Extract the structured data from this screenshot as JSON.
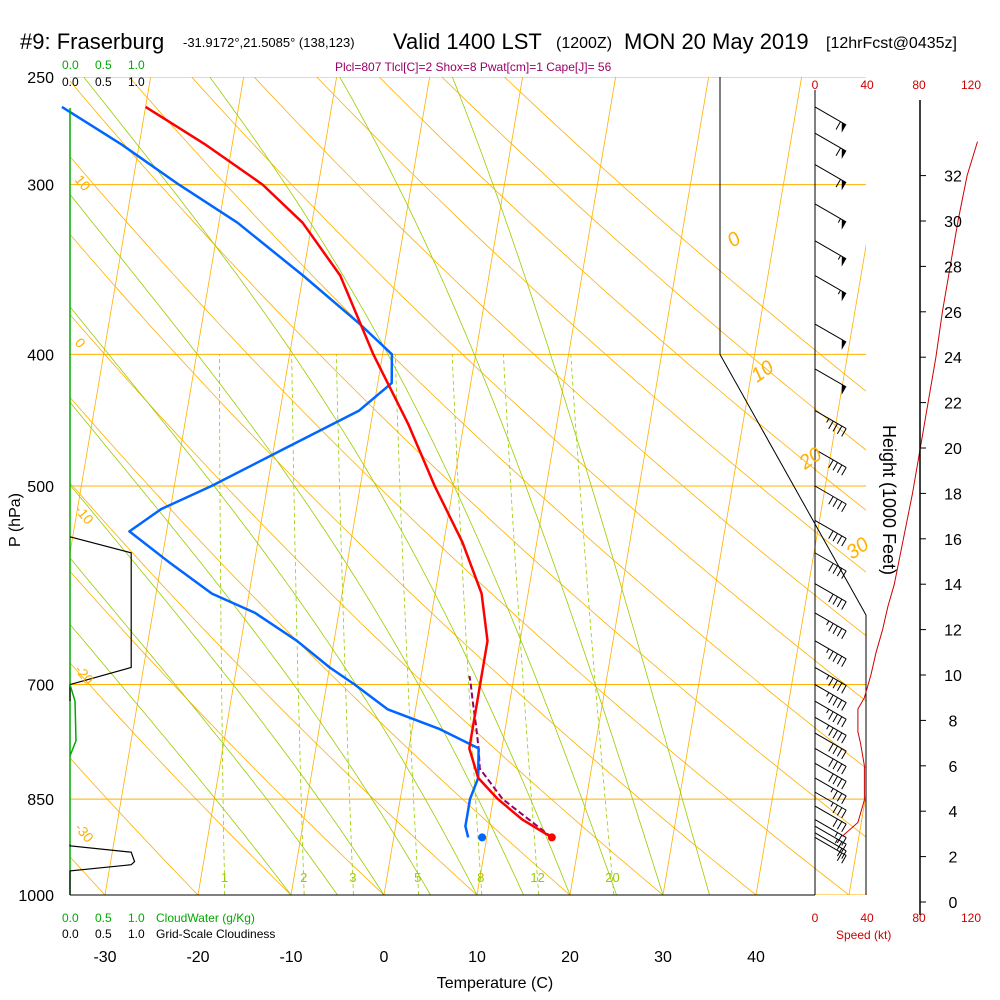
{
  "header": {
    "station": "#9: Fraserburg",
    "coords": "-31.9172°,21.5085° (138,123)",
    "valid": "Valid 1400 LST",
    "zulu": "(1200Z)",
    "date": "MON 20 May 2019",
    "forecast": "[12hrFcst@0435z]",
    "indices": "Plcl=807 Tlcl[C]=2 Shox=8 Pwat[cm]=1 Cape[J]= 56"
  },
  "colors": {
    "background": "#ffffff",
    "isotherm": "#ffb000",
    "dry_adiabat": "#ffb000",
    "moist_adiabat": "#99cc00",
    "mixing_ratio": "#99cc00",
    "temperature": "#ff0000",
    "dewpoint": "#0066ff",
    "parcel": "#990066",
    "cloudwater": "#00aa00",
    "indices_text": "#990066",
    "wind_speed": "#cc0000",
    "barb": "#000000"
  },
  "chart_data": {
    "type": "line",
    "title": "",
    "xlabel": "Temperature (C)",
    "ylabel": "P (hPa)",
    "y2label": "Height (1000 Feet)",
    "xlim": [
      -35,
      45
    ],
    "ylim_hpa": [
      1000,
      250
    ],
    "x_ticks": [
      "-30",
      "-20",
      "-10",
      "0",
      "10",
      "20",
      "30",
      "40"
    ],
    "p_ticks": [
      "250",
      "300",
      "400",
      "500",
      "700",
      "850",
      "1000"
    ],
    "height_ticks": [
      "0",
      "2",
      "4",
      "6",
      "8",
      "10",
      "12",
      "14",
      "16",
      "18",
      "20",
      "22",
      "24",
      "26",
      "28",
      "30",
      "32"
    ],
    "mixing_ratio_labels": [
      "1",
      "2",
      "3",
      "5",
      "8",
      "12",
      "20"
    ],
    "theta_labels": [
      "0",
      "10",
      "20",
      "30"
    ],
    "left_axis_labels": [
      "10",
      "0",
      "-10",
      "-20",
      "-30"
    ],
    "cloud_scale_top": [
      "0.0",
      "0.5",
      "1.0"
    ],
    "cloud_scale_top2": [
      "0.0",
      "0.5",
      "1.0"
    ],
    "cloud_scale_bottom": [
      "0.0",
      "0.5",
      "1.0"
    ],
    "cloud_scale_bottom2": [
      "0.0",
      "0.5",
      "1.0"
    ],
    "cloudwater_label": "CloudWater (g/Kg)",
    "cloudiness_label": "Grid-Scale Cloudiness",
    "wind_speed_ticks": [
      "0",
      "40",
      "80",
      "120"
    ],
    "wind_speed_label": "Speed (kt)",
    "temperature": {
      "p": [
        907,
        880,
        850,
        820,
        780,
        750,
        720,
        700,
        680,
        650,
        600,
        550,
        500,
        450,
        400,
        350,
        320,
        300,
        280,
        263
      ],
      "t": [
        17,
        13.5,
        10.5,
        8,
        6.5,
        6.5,
        6.5,
        6.5,
        6.5,
        6.5,
        5,
        2,
        -2,
        -6,
        -11,
        -16,
        -21,
        -26,
        -33,
        -40
      ]
    },
    "dewpoint": {
      "p": [
        907,
        890,
        870,
        850,
        820,
        780,
        755,
        730,
        700,
        680,
        650,
        620,
        600,
        570,
        540,
        520,
        500,
        470,
        440,
        420,
        400,
        380,
        350,
        320,
        300,
        280,
        263
      ],
      "t": [
        8,
        7.5,
        7.5,
        7.5,
        8,
        7.5,
        3,
        -3,
        -7,
        -10,
        -14,
        -19,
        -24,
        -29,
        -34,
        -31,
        -26,
        -19,
        -11.5,
        -8.5,
        -9,
        -13,
        -20,
        -28,
        -35,
        -42,
        -49
      ]
    },
    "surface_dewpoint_marker": {
      "p": 907,
      "t": 9.5
    },
    "parcel": {
      "p": [
        907,
        850,
        807,
        780,
        750,
        720,
        700,
        690
      ],
      "t": [
        17,
        11,
        8,
        7.5,
        6.8,
        6,
        5.5,
        5.2
      ]
    },
    "height_profile": {
      "p": [
        1000,
        970,
        950,
        930,
        907
      ],
      "h_kft": [
        0,
        0.9,
        1.5,
        2.2,
        2.9
      ]
    },
    "wind_speed_profile": {
      "h_kft": [
        2.9,
        3.5,
        4.5,
        6,
        7,
        7.5,
        8.5,
        9,
        10,
        11,
        12,
        13,
        14,
        16,
        18,
        20,
        22,
        24,
        26,
        28,
        30,
        32,
        33.5
      ],
      "kt": [
        21,
        33,
        38,
        38,
        35,
        33,
        33,
        38,
        43,
        47,
        52,
        56,
        61,
        68,
        75,
        81,
        87,
        93,
        98,
        104,
        110,
        117,
        125
      ]
    },
    "cloud_fraction_profile": {
      "p": [
        1000,
        960,
        950,
        945,
        930,
        920,
        918
      ],
      "f": [
        0,
        0,
        0.9,
        0.95,
        0.9,
        0,
        0
      ]
    },
    "upper_cloud_profile": {
      "p": [
        545,
        560,
        600,
        680,
        700,
        720
      ],
      "f": [
        0,
        0.9,
        0.9,
        0.9,
        0,
        0
      ]
    },
    "wind_barbs": {
      "p": [
        263,
        275,
        290,
        310,
        330,
        350,
        380,
        410,
        440,
        470,
        500,
        530,
        560,
        590,
        620,
        650,
        680,
        700,
        720,
        740,
        760,
        780,
        800,
        820,
        840,
        860,
        880,
        890,
        900,
        907
      ],
      "speed_kt": [
        60,
        60,
        60,
        55,
        55,
        55,
        50,
        50,
        45,
        40,
        40,
        40,
        40,
        40,
        45,
        45,
        45,
        45,
        45,
        45,
        40,
        40,
        40,
        35,
        35,
        30,
        25,
        25,
        20,
        20
      ],
      "dir_deg": [
        300,
        300,
        300,
        300,
        300,
        300,
        300,
        300,
        300,
        300,
        300,
        300,
        300,
        300,
        300,
        300,
        300,
        300,
        300,
        300,
        300,
        300,
        300,
        300,
        300,
        300,
        300,
        300,
        300,
        300
      ]
    }
  }
}
